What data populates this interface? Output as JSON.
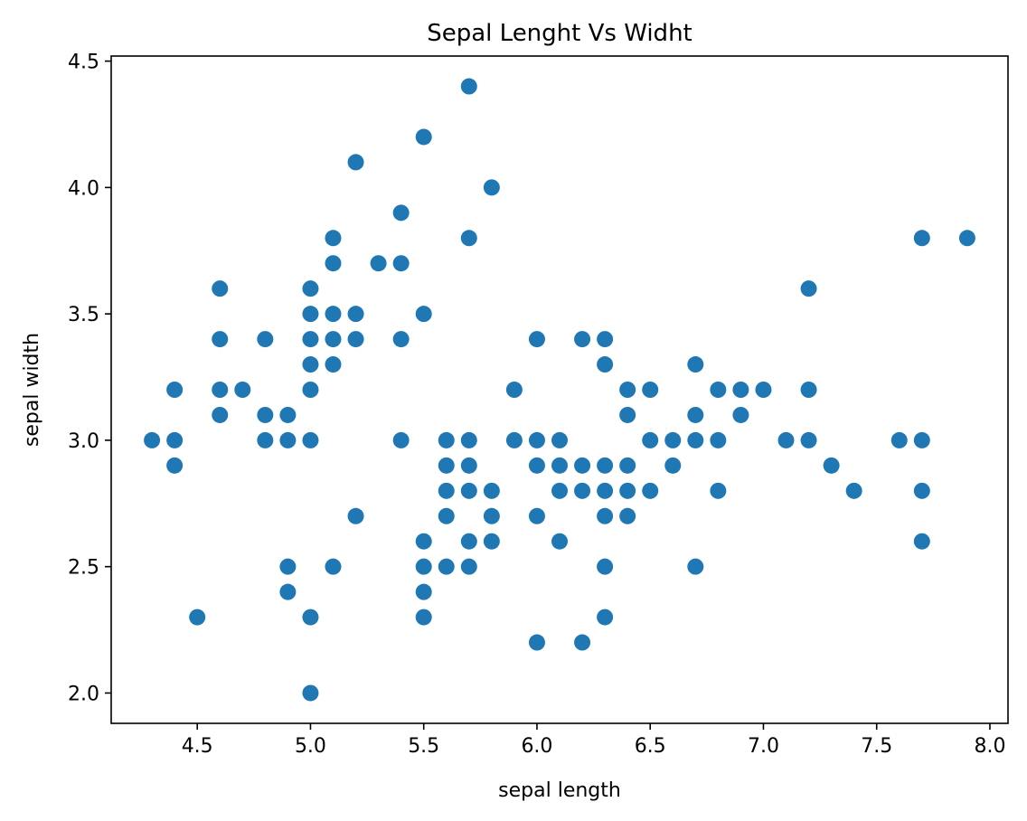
{
  "chart_data": {
    "type": "scatter",
    "title": "Sepal Lenght Vs Widht",
    "xlabel": "sepal length",
    "ylabel": "sepal width",
    "xlim": [
      4.12,
      8.08
    ],
    "ylim": [
      1.88,
      4.52
    ],
    "xticks": [
      4.5,
      5.0,
      5.5,
      6.0,
      6.5,
      7.0,
      7.5,
      8.0
    ],
    "xtick_labels": [
      "4.5",
      "5.0",
      "5.5",
      "6.0",
      "6.5",
      "7.0",
      "7.5",
      "8.0"
    ],
    "yticks": [
      2.0,
      2.5,
      3.0,
      3.5,
      4.0,
      4.5
    ],
    "ytick_labels": [
      "2.0",
      "2.5",
      "3.0",
      "3.5",
      "4.0",
      "4.5"
    ],
    "grid": false,
    "marker_color": "#1f77b4",
    "points": [
      [
        4.3,
        3.0
      ],
      [
        4.4,
        3.2
      ],
      [
        4.4,
        3.0
      ],
      [
        4.4,
        2.9
      ],
      [
        4.5,
        2.3
      ],
      [
        4.6,
        3.6
      ],
      [
        4.6,
        3.4
      ],
      [
        4.6,
        3.2
      ],
      [
        4.6,
        3.1
      ],
      [
        4.7,
        3.2
      ],
      [
        4.8,
        3.4
      ],
      [
        4.8,
        3.1
      ],
      [
        4.8,
        3.0
      ],
      [
        4.9,
        3.1
      ],
      [
        4.9,
        3.0
      ],
      [
        4.9,
        2.5
      ],
      [
        4.9,
        2.4
      ],
      [
        5.0,
        3.6
      ],
      [
        5.0,
        3.5
      ],
      [
        5.0,
        3.4
      ],
      [
        5.0,
        3.3
      ],
      [
        5.0,
        3.2
      ],
      [
        5.0,
        3.0
      ],
      [
        5.0,
        2.3
      ],
      [
        5.0,
        2.0
      ],
      [
        5.1,
        3.8
      ],
      [
        5.1,
        3.7
      ],
      [
        5.1,
        3.5
      ],
      [
        5.1,
        3.4
      ],
      [
        5.1,
        3.3
      ],
      [
        5.1,
        2.5
      ],
      [
        5.2,
        4.1
      ],
      [
        5.2,
        3.5
      ],
      [
        5.2,
        3.4
      ],
      [
        5.2,
        2.7
      ],
      [
        5.3,
        3.7
      ],
      [
        5.4,
        3.9
      ],
      [
        5.4,
        3.7
      ],
      [
        5.4,
        3.4
      ],
      [
        5.4,
        3.0
      ],
      [
        5.5,
        4.2
      ],
      [
        5.5,
        3.5
      ],
      [
        5.5,
        2.6
      ],
      [
        5.5,
        2.5
      ],
      [
        5.5,
        2.4
      ],
      [
        5.5,
        2.3
      ],
      [
        5.6,
        3.0
      ],
      [
        5.6,
        2.9
      ],
      [
        5.6,
        2.8
      ],
      [
        5.6,
        2.7
      ],
      [
        5.6,
        2.5
      ],
      [
        5.7,
        4.4
      ],
      [
        5.7,
        3.8
      ],
      [
        5.7,
        3.0
      ],
      [
        5.7,
        2.9
      ],
      [
        5.7,
        2.8
      ],
      [
        5.7,
        2.6
      ],
      [
        5.7,
        2.5
      ],
      [
        5.8,
        4.0
      ],
      [
        5.8,
        2.8
      ],
      [
        5.8,
        2.7
      ],
      [
        5.8,
        2.6
      ],
      [
        5.9,
        3.2
      ],
      [
        5.9,
        3.0
      ],
      [
        6.0,
        3.4
      ],
      [
        6.0,
        3.0
      ],
      [
        6.0,
        2.9
      ],
      [
        6.0,
        2.7
      ],
      [
        6.0,
        2.2
      ],
      [
        6.1,
        3.0
      ],
      [
        6.1,
        2.9
      ],
      [
        6.1,
        2.8
      ],
      [
        6.1,
        2.6
      ],
      [
        6.2,
        3.4
      ],
      [
        6.2,
        2.9
      ],
      [
        6.2,
        2.8
      ],
      [
        6.2,
        2.2
      ],
      [
        6.3,
        3.4
      ],
      [
        6.3,
        3.3
      ],
      [
        6.3,
        2.9
      ],
      [
        6.3,
        2.8
      ],
      [
        6.3,
        2.7
      ],
      [
        6.3,
        2.5
      ],
      [
        6.3,
        2.3
      ],
      [
        6.4,
        3.2
      ],
      [
        6.4,
        3.1
      ],
      [
        6.4,
        2.9
      ],
      [
        6.4,
        2.8
      ],
      [
        6.4,
        2.7
      ],
      [
        6.5,
        3.2
      ],
      [
        6.5,
        3.0
      ],
      [
        6.5,
        2.8
      ],
      [
        6.6,
        3.0
      ],
      [
        6.6,
        2.9
      ],
      [
        6.7,
        3.3
      ],
      [
        6.7,
        3.1
      ],
      [
        6.7,
        3.0
      ],
      [
        6.7,
        2.5
      ],
      [
        6.8,
        3.2
      ],
      [
        6.8,
        3.0
      ],
      [
        6.8,
        2.8
      ],
      [
        6.9,
        3.2
      ],
      [
        6.9,
        3.1
      ],
      [
        7.0,
        3.2
      ],
      [
        7.1,
        3.0
      ],
      [
        7.2,
        3.6
      ],
      [
        7.2,
        3.2
      ],
      [
        7.2,
        3.0
      ],
      [
        7.3,
        2.9
      ],
      [
        7.4,
        2.8
      ],
      [
        7.6,
        3.0
      ],
      [
        7.7,
        3.8
      ],
      [
        7.7,
        3.0
      ],
      [
        7.7,
        2.8
      ],
      [
        7.7,
        2.6
      ],
      [
        7.9,
        3.8
      ]
    ]
  }
}
